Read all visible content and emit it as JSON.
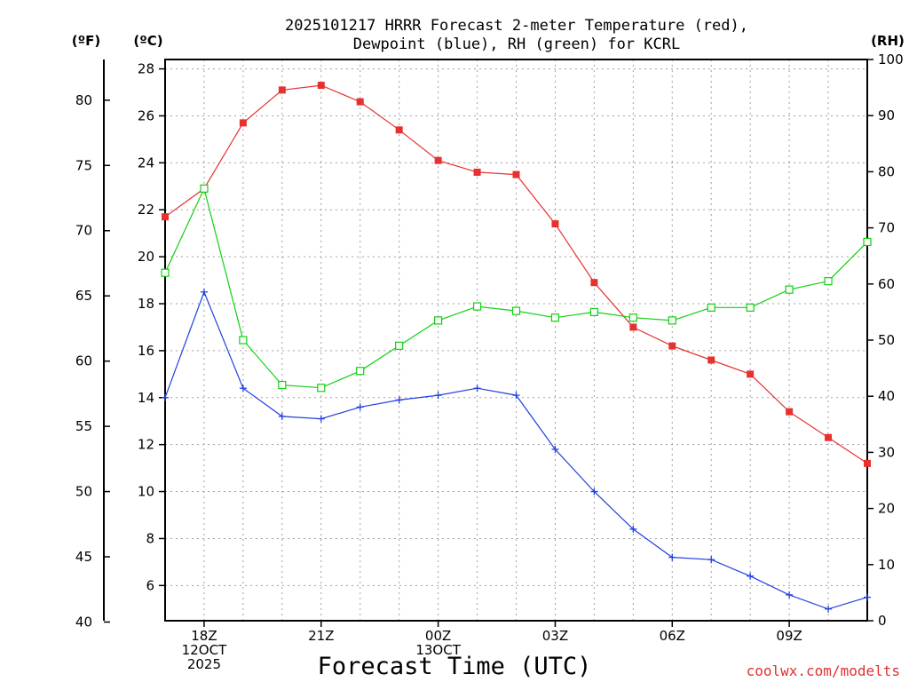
{
  "chart_data": {
    "type": "line",
    "title_line1": "2025101217 HRRR Forecast 2-meter Temperature (red),",
    "title_line2": "Dewpoint (blue), RH (green) for KCRL",
    "xlabel": "Forecast Time (UTC)",
    "credit": "coolwx.com/modelts",
    "unit_left_outer": "(ºF)",
    "unit_left_inner": "(ºC)",
    "unit_right": "(RH)",
    "x_hours": [
      17,
      18,
      19,
      20,
      21,
      22,
      23,
      24,
      25,
      26,
      27,
      28,
      29,
      30,
      31,
      32,
      33,
      34,
      35
    ],
    "x_ticks": [
      {
        "hour": 18,
        "lines": [
          "18Z",
          "12OCT",
          "2025"
        ]
      },
      {
        "hour": 21,
        "lines": [
          "21Z"
        ]
      },
      {
        "hour": 24,
        "lines": [
          "00Z",
          "13OCT"
        ]
      },
      {
        "hour": 27,
        "lines": [
          "03Z"
        ]
      },
      {
        "hour": 30,
        "lines": [
          "06Z"
        ]
      },
      {
        "hour": 33,
        "lines": [
          "09Z"
        ]
      }
    ],
    "celsius_ylim": [
      4.5,
      28.4
    ],
    "celsius_ticks": [
      6,
      8,
      10,
      12,
      14,
      16,
      18,
      20,
      22,
      24,
      26,
      28
    ],
    "fahrenheit_ticks": [
      40,
      45,
      50,
      55,
      60,
      65,
      70,
      75,
      80
    ],
    "rh_ylim": [
      0,
      100
    ],
    "rh_ticks": [
      0,
      10,
      20,
      30,
      40,
      50,
      60,
      70,
      80,
      90,
      100
    ],
    "series": [
      {
        "name": "Temperature",
        "color": "#e83030",
        "marker": "filled-square",
        "axis": "celsius",
        "values": [
          21.7,
          22.9,
          25.7,
          27.1,
          27.3,
          26.6,
          25.4,
          24.1,
          23.6,
          23.5,
          21.4,
          18.9,
          17.0,
          16.2,
          15.6,
          15.0,
          13.4,
          12.3,
          11.2
        ]
      },
      {
        "name": "Dewpoint",
        "color": "#2040e0",
        "marker": "plus",
        "axis": "celsius",
        "values": [
          14.0,
          18.5,
          14.4,
          13.2,
          13.1,
          13.6,
          13.9,
          14.1,
          14.4,
          14.1,
          11.8,
          10.0,
          8.4,
          7.2,
          7.1,
          6.4,
          5.6,
          5.0,
          5.5
        ]
      },
      {
        "name": "RH",
        "color": "#10d010",
        "marker": "open-square",
        "axis": "rh",
        "values": [
          62,
          77,
          50,
          42,
          41.5,
          44.5,
          49,
          53.5,
          56,
          55.2,
          54,
          55,
          54,
          53.5,
          55.8,
          55.8,
          59,
          60.5,
          67.5
        ]
      }
    ]
  }
}
